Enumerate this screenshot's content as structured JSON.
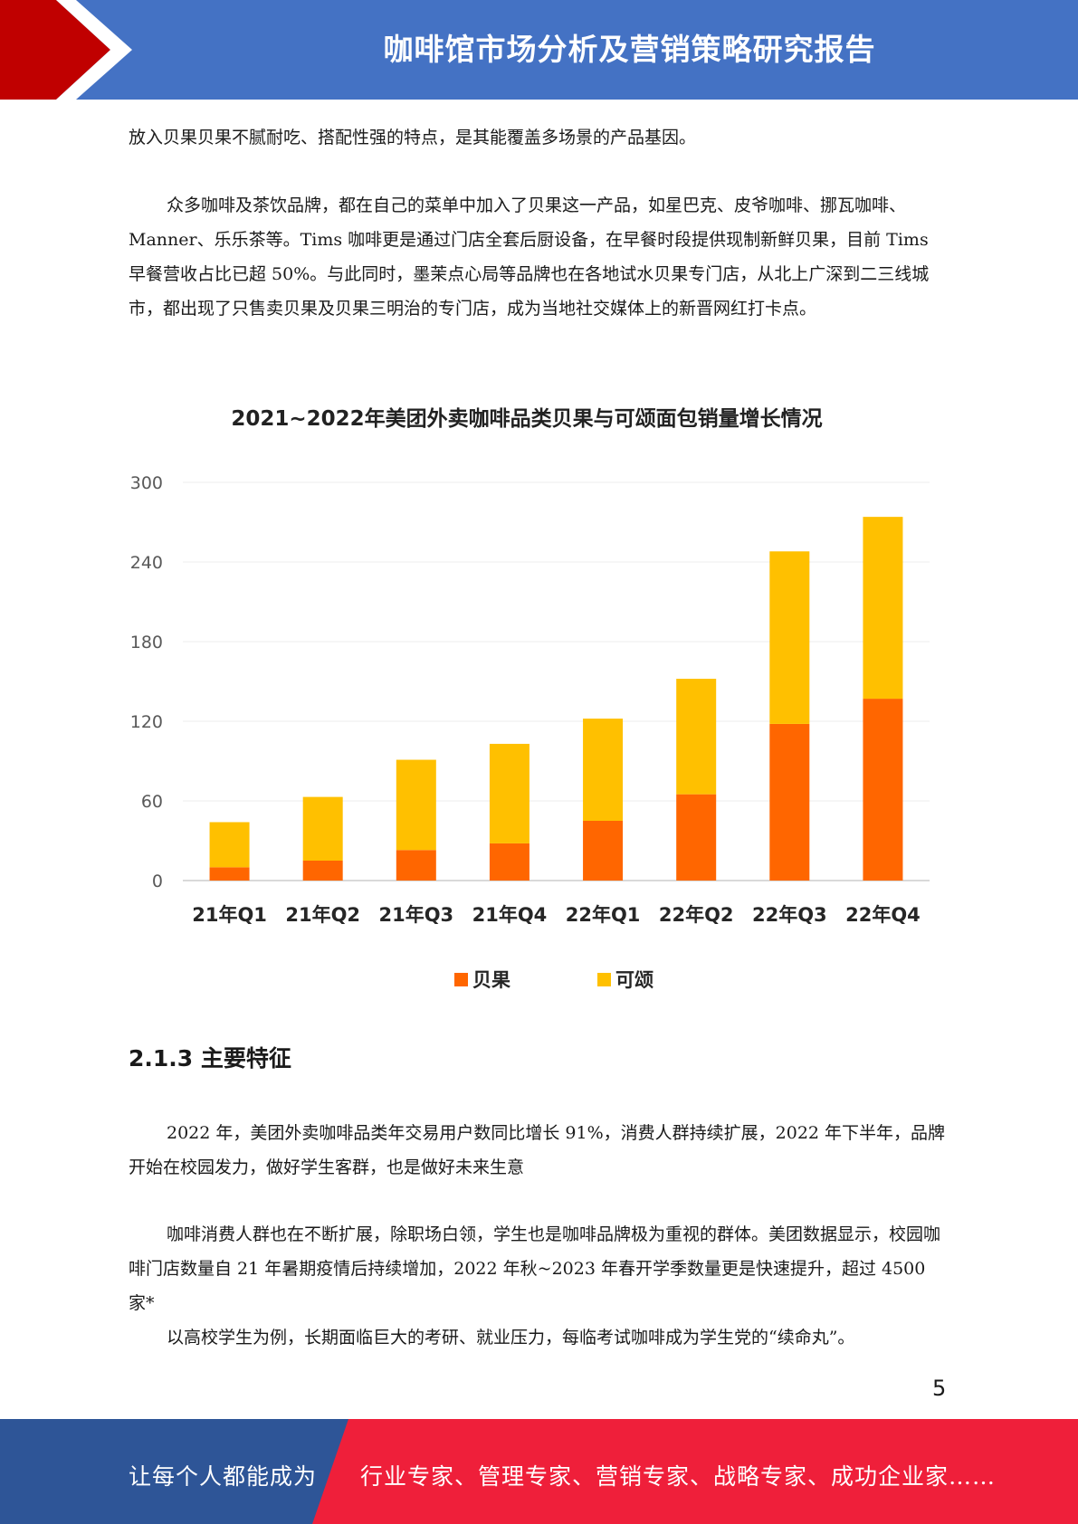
{
  "header": {
    "title": "咖啡馆市场分析及营销策略研究报告"
  },
  "paragraphs": [
    "放入贝果贝果不腻耐吃、搭配性强的特点，是其能覆盖多场景的产品基因。",
    "众多咖啡及茶饮品牌，都在自己的菜单中加入了贝果这一产品，如星巴克、皮爷咖啡、挪瓦咖啡、Manner、乐乐茶等。Tims 咖啡更是通过门店全套后厨设备，在早餐时段提供现制新鲜贝果，目前 Tims 早餐营收占比已超 50%。与此同时，墨茉点心局等品牌也在各地试水贝果专门店，从北上广深到二三线城市，都出现了只售卖贝果及贝果三明治的专门店，成为当地社交媒体上的新晋网红打卡点。"
  ],
  "chart_data": {
    "type": "bar",
    "stacked": true,
    "title": "2021~2022年美团外卖咖啡品类贝果与可颂面包销量增长情况",
    "categories": [
      "21年Q1",
      "21年Q2",
      "21年Q3",
      "21年Q4",
      "22年Q1",
      "22年Q2",
      "22年Q3",
      "22年Q4"
    ],
    "series": [
      {
        "name": "贝果",
        "color": "#ff6600",
        "values": [
          10,
          15,
          23,
          28,
          45,
          65,
          118,
          137
        ]
      },
      {
        "name": "可颂",
        "color": "#ffc000",
        "values": [
          34,
          48,
          68,
          75,
          77,
          87,
          130,
          137
        ]
      }
    ],
    "yticks": [
      "0",
      "60",
      "120",
      "180",
      "240",
      "300"
    ],
    "ylim": [
      0,
      300
    ],
    "grid": true,
    "legend_position": "bottom"
  },
  "section": {
    "heading": "2.1.3 主要特征"
  },
  "paragraphs2": [
    "2022 年，美团外卖咖啡品类年交易用户数同比增长 91%，消费人群持续扩展，2022 年下半年，品牌开始在校园发力，做好学生客群，也是做好未来生意",
    "咖啡消费人群也在不断扩展，除职场白领，学生也是咖啡品牌极为重视的群体。美团数据显示，校园咖啡门店数量自 21 年暑期疫情后持续增加，2022 年秋~2023 年春开学季数量更是快速提升，超过 4500 家*",
    "以高校学生为例，长期面临巨大的考研、就业压力，每临考试咖啡成为学生党的“续命丸”。"
  ],
  "page_number": "5",
  "footer": {
    "left_text": "让每个人都能成为",
    "right_text": "行业专家、管理专家、营销专家、战略专家、成功企业家……"
  },
  "colors": {
    "header_blue": "#4472c4",
    "accent_red": "#c00000",
    "footer_blue": "#2e5597",
    "footer_red": "#ef1f3a"
  }
}
